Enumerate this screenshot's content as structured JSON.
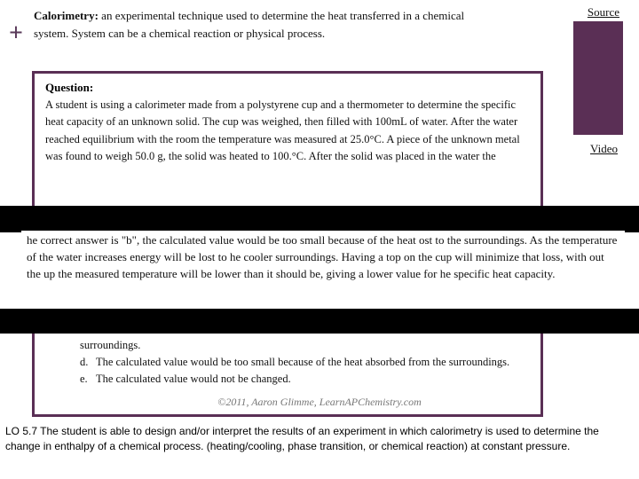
{
  "plus": "+",
  "intro": {
    "term": "Calorimetry:",
    "text": " an experimental technique used to determine the heat transferred in a chemical system. System can be a chemical reaction or physical process."
  },
  "links": {
    "source": "Source",
    "video": "Video"
  },
  "question": {
    "heading": "Question:",
    "body": "A student is using a calorimeter made from a polystyrene cup and a thermometer to determine the specific heat capacity of an unknown solid. The cup was weighed, then filled with 100mL of water. After the water reached equilibrium with the room the temperature was measured at 25.0°C. A piece of the unknown metal was found to weigh 50.0 g, the solid was heated to 100.°C. After the solid was placed in the water the"
  },
  "answer": "he correct answer is \"b\", the calculated value would be too small because of the heat ost to the surroundings. As the temperature of the water increases energy will be lost to he cooler surroundings. Having a top on the cup will minimize that loss, with out the up the measured temperature will be lower than it should be, giving a lower value for he specific heat capacity.",
  "options": {
    "d_pre": "surroundings.",
    "d_letter": "d.",
    "d_text": "The calculated value would be too small because of the heat absorbed from the surroundings.",
    "e_letter": "e.",
    "e_text": "The calculated value would not be changed."
  },
  "credit": "©2011, Aaron Glimme, LearnAPChemistry.com",
  "lo": "LO 5.7 The student is able to design and/or interpret the results of an experiment in which calorimetry is used to determine the change in enthalpy of a chemical process. (heating/cooling, phase transition, or chemical reaction) at constant pressure.",
  "colors": {
    "accent": "#5a2f55",
    "black": "#000000",
    "bg": "#ffffff"
  }
}
